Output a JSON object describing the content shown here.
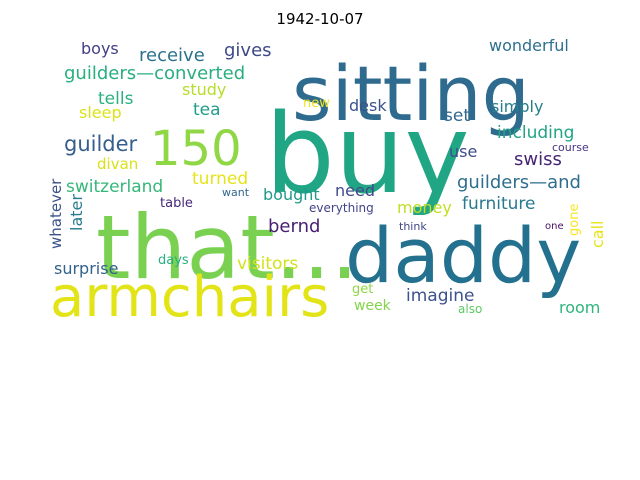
{
  "title": "1942-10-07",
  "words": [
    {
      "text": "buy",
      "color": "#21a685"
    },
    {
      "text": "sitting",
      "color": "#2f6b8e"
    },
    {
      "text": "that...",
      "color": "#7ad151"
    },
    {
      "text": "daddy",
      "color": "#23718e"
    },
    {
      "text": "armchairs",
      "color": "#e2e418"
    },
    {
      "text": "150",
      "color": "#8fd744"
    },
    {
      "text": "guilders—converted",
      "color": "#29af7f"
    },
    {
      "text": "receive",
      "color": "#2c728e"
    },
    {
      "text": "gives",
      "color": "#3e4989"
    },
    {
      "text": "boys",
      "color": "#433e85"
    },
    {
      "text": "wonderful",
      "color": "#2d708e"
    },
    {
      "text": "study",
      "color": "#b5de2b"
    },
    {
      "text": "tells",
      "color": "#2ab07f"
    },
    {
      "text": "tea",
      "color": "#1f9e89"
    },
    {
      "text": "sleep",
      "color": "#dde318"
    },
    {
      "text": "new",
      "color": "#f1e51d"
    },
    {
      "text": "desk",
      "color": "#3b528b"
    },
    {
      "text": "simply",
      "color": "#277f8e"
    },
    {
      "text": "set",
      "color": "#31688e"
    },
    {
      "text": "guilder",
      "color": "#365d8d"
    },
    {
      "text": "including",
      "color": "#20a486"
    },
    {
      "text": "course",
      "color": "#46337e"
    },
    {
      "text": "swiss",
      "color": "#482475"
    },
    {
      "text": "use",
      "color": "#3e4c8a"
    },
    {
      "text": "divan",
      "color": "#d8e219"
    },
    {
      "text": "switzerland",
      "color": "#35b779"
    },
    {
      "text": "turned",
      "color": "#e5e419"
    },
    {
      "text": "guilders—and",
      "color": "#2e6e8e"
    },
    {
      "text": "whatever",
      "color": "#3b528b"
    },
    {
      "text": "want",
      "color": "#31688e"
    },
    {
      "text": "bought",
      "color": "#1f9a8a"
    },
    {
      "text": "need",
      "color": "#3e4a89"
    },
    {
      "text": "later",
      "color": "#287c8e"
    },
    {
      "text": "table",
      "color": "#482878"
    },
    {
      "text": "everything",
      "color": "#414487"
    },
    {
      "text": "furniture",
      "color": "#2a788e"
    },
    {
      "text": "bernd",
      "color": "#481f70"
    },
    {
      "text": "money",
      "color": "#c2df23"
    },
    {
      "text": "gone",
      "color": "#f8e621"
    },
    {
      "text": "one",
      "color": "#471063"
    },
    {
      "text": "call",
      "color": "#e7e419"
    },
    {
      "text": "think",
      "color": "#3f4788"
    },
    {
      "text": "surprise",
      "color": "#33628d"
    },
    {
      "text": "days",
      "color": "#28ae80"
    },
    {
      "text": "visitors",
      "color": "#d2e21b"
    },
    {
      "text": "get",
      "color": "#90d743"
    },
    {
      "text": "imagine",
      "color": "#3b528b"
    },
    {
      "text": "week",
      "color": "#84d44b"
    },
    {
      "text": "room",
      "color": "#2fb47c"
    },
    {
      "text": "also",
      "color": "#5ec962"
    }
  ]
}
